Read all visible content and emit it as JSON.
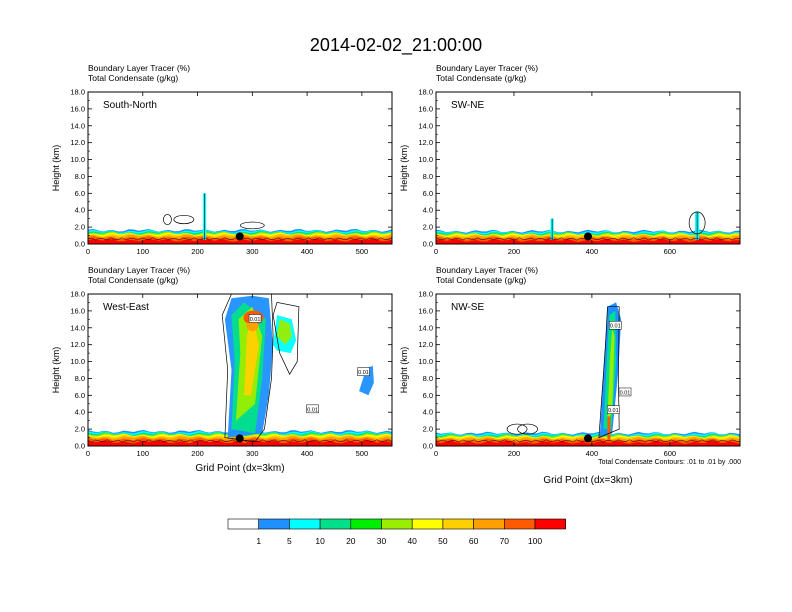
{
  "title": "2014-02-02_21:00:00",
  "footer_note": "Total Condensate Contours: .01 to .01 by .000",
  "chart_data": [
    {
      "type": "heatmap",
      "label": "South-North",
      "header_line1": "Boundary Layer Tracer   (%)",
      "header_line2": "Total Condensate   (g/kg)",
      "ylabel": "Height (km)",
      "xlabel": "",
      "xlim": [
        0,
        555
      ],
      "ylim": [
        0,
        18
      ],
      "xticks": [
        0,
        100,
        200,
        300,
        400,
        500
      ],
      "yticks": [
        0,
        2,
        4,
        6,
        8,
        10,
        12,
        14,
        16,
        18
      ],
      "ytick_labels": [
        "0.0",
        "2.0",
        "4.0",
        "6.0",
        "8.0",
        "10.0",
        "12.0",
        "14.0",
        "16.0",
        "18.0"
      ],
      "marker_x": 277,
      "pbl_top_km": 1.5,
      "plumes": [
        {
          "x": 213,
          "top": 6.0,
          "width": 3
        }
      ],
      "contour_blobs": [
        {
          "x": 145,
          "y": 2.9,
          "rx": 4,
          "ry": 0.6
        },
        {
          "x": 175,
          "y": 2.9,
          "rx": 10,
          "ry": 0.5
        },
        {
          "x": 300,
          "y": 2.2,
          "rx": 12,
          "ry": 0.4
        }
      ],
      "contour_labels": []
    },
    {
      "type": "heatmap",
      "label": "SW-NE",
      "header_line1": "Boundary Layer Tracer   (%)",
      "header_line2": "Total Condensate   (g/kg)",
      "ylabel": "Height (km)",
      "xlabel": "",
      "xlim": [
        0,
        780
      ],
      "ylim": [
        0,
        18
      ],
      "xticks": [
        0,
        200,
        400,
        600
      ],
      "yticks": [
        0,
        2,
        4,
        6,
        8,
        10,
        12,
        14,
        16,
        18
      ],
      "ytick_labels": [
        "0.0",
        "2.0",
        "4.0",
        "6.0",
        "8.0",
        "10.0",
        "12.0",
        "14.0",
        "16.0",
        "18.0"
      ],
      "marker_x": 390,
      "pbl_top_km": 1.4,
      "plumes": [
        {
          "x": 298,
          "top": 3.0,
          "width": 3
        },
        {
          "x": 670,
          "top": 3.8,
          "width": 4
        }
      ],
      "contour_blobs": [
        {
          "x": 670,
          "y": 2.5,
          "rx": 8,
          "ry": 1.3
        }
      ],
      "contour_labels": []
    },
    {
      "type": "heatmap",
      "label": "West-East",
      "header_line1": "Boundary Layer Tracer   (%)",
      "header_line2": "Total Condensate   (g/kg)",
      "ylabel": "Height (km)",
      "xlabel": "Grid Point (dx=3km)",
      "xlim": [
        0,
        555
      ],
      "ylim": [
        0,
        18
      ],
      "xticks": [
        0,
        100,
        200,
        300,
        400,
        500
      ],
      "yticks": [
        0,
        2,
        4,
        6,
        8,
        10,
        12,
        14,
        16,
        18
      ],
      "ytick_labels": [
        "0.0",
        "2.0",
        "4.0",
        "6.0",
        "8.0",
        "10.0",
        "12.0",
        "14.0",
        "16.0",
        "18.0"
      ],
      "marker_x": 277,
      "pbl_top_km": 1.6,
      "plumes": [],
      "contour_blobs": [],
      "contour_labels": [
        {
          "x": 305,
          "y": 15.1,
          "text": "0.01"
        },
        {
          "x": 503,
          "y": 8.8,
          "text": "0.01"
        },
        {
          "x": 410,
          "y": 4.4,
          "text": "0.01"
        }
      ]
    },
    {
      "type": "heatmap",
      "label": "NW-SE",
      "header_line1": "Boundary Layer Tracer   (%)",
      "header_line2": "Total Condensate   (g/kg)",
      "ylabel": "Height (km)",
      "xlabel": "Grid Point (dx=3km)",
      "xlim": [
        0,
        780
      ],
      "ylim": [
        0,
        18
      ],
      "xticks": [
        0,
        200,
        400,
        600
      ],
      "yticks": [
        0,
        2,
        4,
        6,
        8,
        10,
        12,
        14,
        16,
        18
      ],
      "ytick_labels": [
        "0.0",
        "2.0",
        "4.0",
        "6.0",
        "8.0",
        "10.0",
        "12.0",
        "14.0",
        "16.0",
        "18.0"
      ],
      "marker_x": 390,
      "pbl_top_km": 1.4,
      "plumes": [],
      "contour_blobs": [
        {
          "x": 208,
          "y": 2.0,
          "rx": 10,
          "ry": 0.6
        },
        {
          "x": 235,
          "y": 2.0,
          "rx": 10,
          "ry": 0.6
        }
      ],
      "contour_labels": [
        {
          "x": 460,
          "y": 14.3,
          "text": "0.01"
        },
        {
          "x": 485,
          "y": 6.4,
          "text": "0.01"
        },
        {
          "x": 455,
          "y": 4.3,
          "text": "0.01"
        }
      ]
    }
  ],
  "colorbar": {
    "colors": [
      "#ffffff",
      "#1e90ff",
      "#00ffff",
      "#00e08a",
      "#00ee00",
      "#9aee00",
      "#ffff00",
      "#ffd000",
      "#ffa000",
      "#ff5a00",
      "#ff0000"
    ],
    "labels": [
      "1",
      "5",
      "10",
      "20",
      "30",
      "40",
      "50",
      "60",
      "70",
      "100"
    ]
  }
}
